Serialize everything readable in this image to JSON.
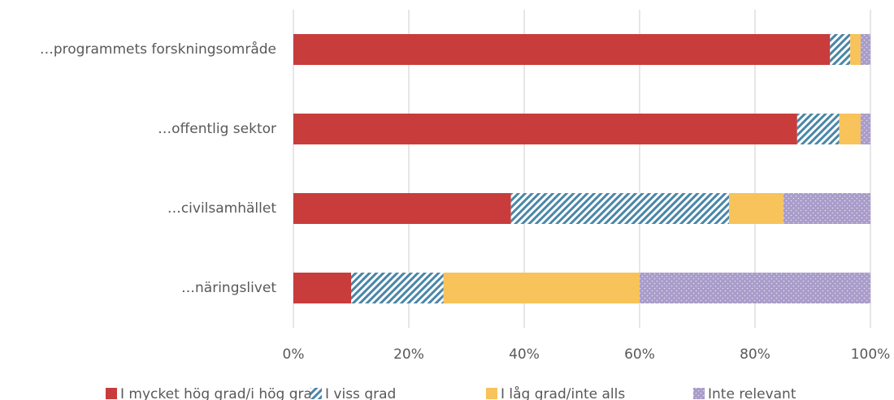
{
  "chart_data": {
    "type": "stacked-barh",
    "categories": [
      "…programmets forskningsområde",
      "…offentlig sektor",
      "…civilsamhället",
      "…näringslivet"
    ],
    "series": [
      {
        "name": "I mycket hög grad/i hög grad",
        "color": "#c83c3c",
        "pattern": "solid",
        "values": [
          93,
          87.3,
          37.7,
          10
        ]
      },
      {
        "name": "I viss grad",
        "color": "#4a86a8",
        "pattern": "hatch",
        "values": [
          3.5,
          7.3,
          37.8,
          16
        ]
      },
      {
        "name": "I låg grad/inte alls",
        "color": "#f7c35a",
        "pattern": "solid",
        "values": [
          1.8,
          3.7,
          9.4,
          34
        ]
      },
      {
        "name": "Inte relevant",
        "color": "#a99cc9",
        "pattern": "dots",
        "values": [
          1.7,
          1.7,
          15.1,
          40
        ]
      }
    ],
    "xlim": [
      0,
      100
    ],
    "xticks": [
      {
        "value": 0,
        "label": "0%"
      },
      {
        "value": 20,
        "label": "20%"
      },
      {
        "value": 40,
        "label": "40%"
      },
      {
        "value": 60,
        "label": "60%"
      },
      {
        "value": 80,
        "label": "80%"
      },
      {
        "value": 100,
        "label": "100%"
      }
    ],
    "grid": true,
    "legend": "bottom"
  }
}
